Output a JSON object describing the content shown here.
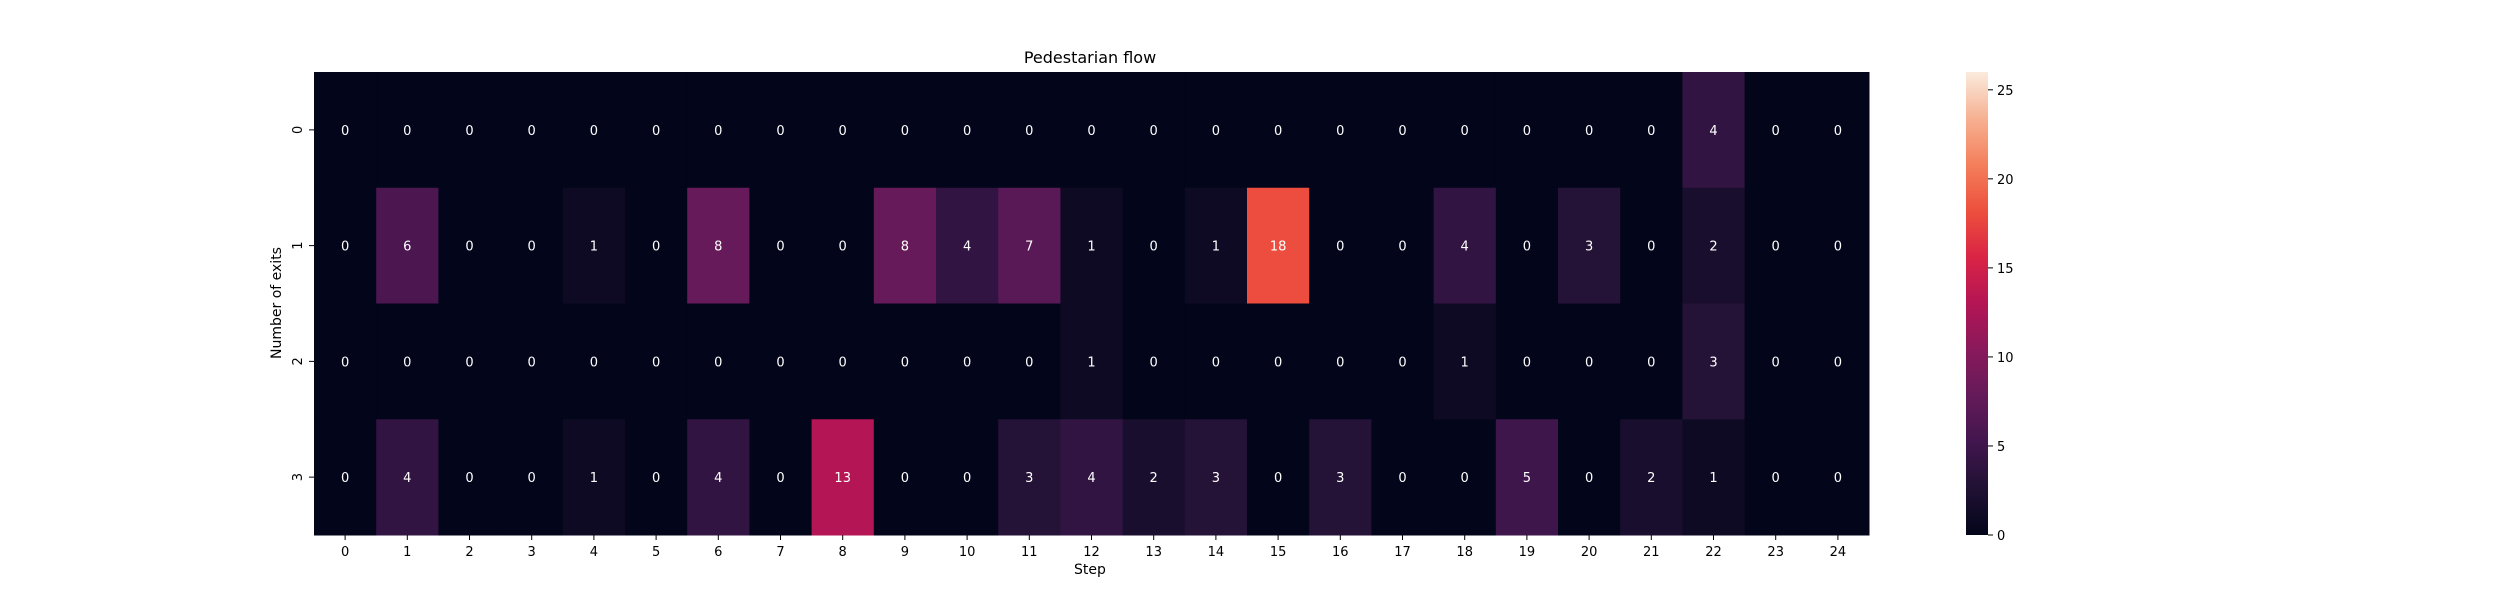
{
  "chart_data": {
    "type": "heatmap",
    "title": "Pedestarian flow",
    "xlabel": "Step",
    "ylabel": "Number of exits",
    "x_categories": [
      "0",
      "1",
      "2",
      "3",
      "4",
      "5",
      "6",
      "7",
      "8",
      "9",
      "10",
      "11",
      "12",
      "13",
      "14",
      "15",
      "16",
      "17",
      "18",
      "19",
      "20",
      "21",
      "22",
      "23",
      "24"
    ],
    "y_categories": [
      "0",
      "1",
      "2",
      "3"
    ],
    "values": [
      [
        0,
        0,
        0,
        0,
        0,
        0,
        0,
        0,
        0,
        0,
        0,
        0,
        0,
        0,
        0,
        0,
        0,
        0,
        0,
        0,
        0,
        0,
        4,
        0,
        0
      ],
      [
        0,
        6,
        0,
        0,
        1,
        0,
        8,
        0,
        0,
        8,
        4,
        7,
        1,
        0,
        1,
        18,
        0,
        0,
        4,
        0,
        3,
        0,
        2,
        0,
        0
      ],
      [
        0,
        0,
        0,
        0,
        0,
        0,
        0,
        0,
        0,
        0,
        0,
        0,
        1,
        0,
        0,
        0,
        0,
        0,
        1,
        0,
        0,
        0,
        3,
        0,
        0
      ],
      [
        0,
        4,
        0,
        0,
        1,
        0,
        4,
        0,
        13,
        0,
        0,
        3,
        4,
        2,
        3,
        0,
        3,
        0,
        0,
        5,
        0,
        2,
        1,
        0,
        0
      ]
    ],
    "colorbar": {
      "min": 0,
      "max": 26,
      "ticks": [
        0,
        5,
        10,
        15,
        20,
        25
      ]
    },
    "colormap": "rocket",
    "grid": false
  }
}
